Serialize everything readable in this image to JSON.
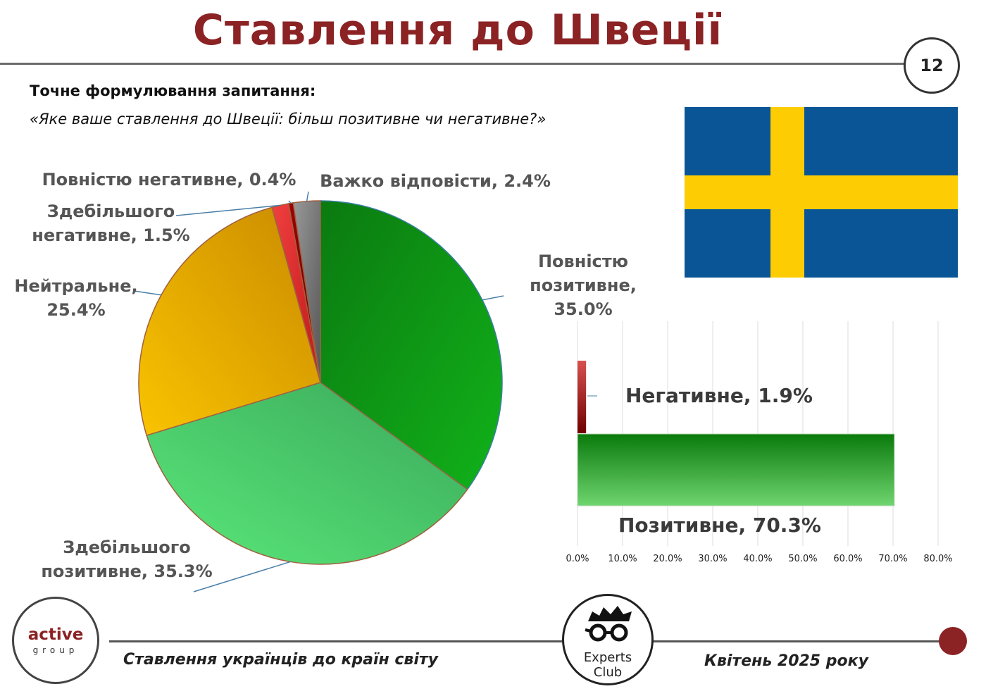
{
  "header": {
    "title": "Ставлення до Швеції",
    "page_number": "12"
  },
  "question": {
    "label": "Точне формулювання запитання:",
    "text": "«Яке ваше ставлення до Швеції: більш позитивне чи негативне?»"
  },
  "footer": {
    "left_text": "Ставлення українців до країн світу",
    "right_text": "Квітень 2025 року",
    "logo_left_word1": "active",
    "logo_left_word2": "group",
    "logo_right_word1": "Experts",
    "logo_right_word2": "Club"
  },
  "colors": {
    "title": "#8b2224",
    "flag_blue": "#0a5595",
    "flag_yellow": "#fecc02"
  },
  "chart_data": [
    {
      "type": "pie",
      "slices": [
        {
          "label": "Повністю позитивне",
          "value": 35.0,
          "display": "Повністю\nпозитивне,\n35.0%",
          "color": "#0f9a14"
        },
        {
          "label": "Здебільшого позитивне",
          "value": 35.3,
          "display": "Здебільшого\nпозитивне, 35.3%",
          "color": "#4cd66a"
        },
        {
          "label": "Нейтральне",
          "value": 25.4,
          "display": "Нейтральне,\n25.4%",
          "color": "#e8aa08"
        },
        {
          "label": "Здебільшого негативне",
          "value": 1.5,
          "display": "Здебільшого\nнегативне, 1.5%",
          "color": "#e03030"
        },
        {
          "label": "Повністю негативне",
          "value": 0.4,
          "display": "Повністю негативне, 0.4%",
          "color": "#8b0000"
        },
        {
          "label": "Важко відповісти",
          "value": 2.4,
          "display": "Важко відповісти, 2.4%",
          "color": "#7a7a7a"
        }
      ]
    },
    {
      "type": "bar",
      "orientation": "horizontal",
      "categories": [
        "Негативне",
        "Позитивне"
      ],
      "values": [
        1.9,
        70.3
      ],
      "display": [
        "Негативне, 1.9%",
        "Позитивне, 70.3%"
      ],
      "colors": [
        "#b01010",
        "#13a016"
      ],
      "xlim": [
        0,
        80
      ],
      "ticks": [
        "0.0%",
        "10.0%",
        "20.0%",
        "30.0%",
        "40.0%",
        "50.0%",
        "60.0%",
        "70.0%",
        "80.0%"
      ],
      "grid": true
    }
  ]
}
